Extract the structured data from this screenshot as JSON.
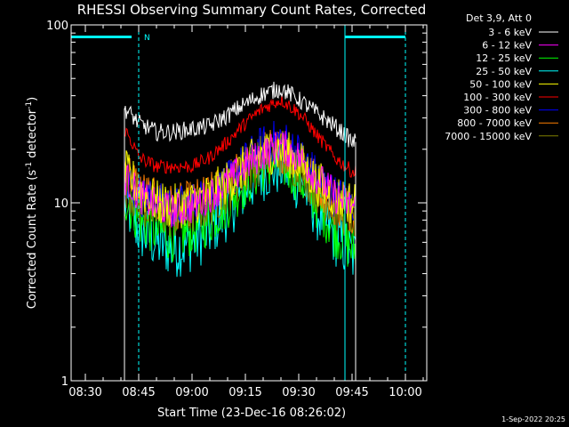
{
  "chart_data": {
    "type": "line",
    "title": "RHESSI Observing Summary Count Rates, Corrected",
    "xlabel": "Start Time (23-Dec-16 08:26:02)",
    "ylabel": "Corrected Count Rate (s⁻¹ detector⁻¹)",
    "ylabel_base": "Corrected Count Rate (s",
    "ylabel_mid": " detector",
    "ylabel_end": ")",
    "ylabel_sup": "-1",
    "yscale": "log",
    "ylim": [
      1,
      100
    ],
    "xlim": [
      "08:26",
      "10:06"
    ],
    "xticks": [
      "08:30",
      "08:45",
      "09:00",
      "09:15",
      "09:30",
      "09:45",
      "10:00"
    ],
    "yticks": [
      "1",
      "10",
      "100"
    ],
    "legend_title": "Det 3,9, Att 0",
    "legend_position": "top-right",
    "footer_date": "1-Sep-2022 20:25",
    "night_marker": "N",
    "annotations": {
      "attenuator_bar_intervals": [
        [
          "08:26",
          "08:43"
        ],
        [
          "09:43",
          "10:00"
        ]
      ],
      "solid_lines": [
        "08:26",
        "09:43"
      ],
      "dashed_lines": [
        "08:45",
        "10:00"
      ]
    },
    "data_window": [
      "08:41",
      "09:46"
    ],
    "series": [
      {
        "name": "3 - 6 keV",
        "color": "#ffffff",
        "x": [
          "08:41",
          "08:45",
          "08:50",
          "08:55",
          "09:00",
          "09:05",
          "09:10",
          "09:15",
          "09:20",
          "09:25",
          "09:30",
          "09:35",
          "09:40",
          "09:45"
        ],
        "y": [
          34,
          28,
          25,
          25,
          26,
          27,
          31,
          36,
          41,
          44,
          38,
          32,
          27,
          22
        ]
      },
      {
        "name": "6 - 12 keV",
        "color": "#ff00ff",
        "x": [
          "08:41",
          "08:45",
          "08:50",
          "08:55",
          "09:00",
          "09:05",
          "09:10",
          "09:15",
          "09:20",
          "09:25",
          "09:30",
          "09:35",
          "09:40",
          "09:45"
        ],
        "y": [
          14,
          11,
          9.5,
          9,
          9.5,
          11,
          13,
          16,
          19,
          21,
          18,
          14,
          11,
          9.5
        ]
      },
      {
        "name": "12 - 25 keV",
        "color": "#00ff00",
        "x": [
          "08:41",
          "08:45",
          "08:50",
          "08:55",
          "09:00",
          "09:05",
          "09:10",
          "09:15",
          "09:20",
          "09:25",
          "09:30",
          "09:35",
          "09:40",
          "09:45"
        ],
        "y": [
          11,
          8,
          7,
          6.5,
          7,
          8,
          10,
          13,
          16,
          17,
          14,
          10,
          7,
          5.5
        ]
      },
      {
        "name": "25 - 50 keV",
        "color": "#00ffff",
        "x": [
          "08:41",
          "08:45",
          "08:50",
          "08:55",
          "09:00",
          "09:05",
          "09:10",
          "09:15",
          "09:20",
          "09:25",
          "09:30",
          "09:35",
          "09:40",
          "09:45"
        ],
        "y": [
          10,
          7,
          6,
          5.5,
          6,
          7,
          9,
          12,
          15,
          16,
          13,
          9,
          6.5,
          5
        ]
      },
      {
        "name": "50 - 100 keV",
        "color": "#ffff00",
        "x": [
          "08:41",
          "08:45",
          "08:50",
          "08:55",
          "09:00",
          "09:05",
          "09:10",
          "09:15",
          "09:20",
          "09:25",
          "09:30",
          "09:35",
          "09:40",
          "09:45"
        ],
        "y": [
          15,
          12,
          10,
          9.5,
          10,
          11,
          13,
          16,
          19,
          20,
          17,
          13,
          11,
          10
        ]
      },
      {
        "name": "100 - 300 keV",
        "color": "#ff0000",
        "x": [
          "08:41",
          "08:45",
          "08:50",
          "08:55",
          "09:00",
          "09:05",
          "09:10",
          "09:15",
          "09:20",
          "09:25",
          "09:30",
          "09:35",
          "09:40",
          "09:45"
        ],
        "y": [
          26,
          18,
          16,
          16,
          16,
          18,
          22,
          28,
          34,
          38,
          32,
          24,
          18,
          15
        ]
      },
      {
        "name": "300 - 800 keV",
        "color": "#0000ff",
        "x": [
          "08:41",
          "08:45",
          "08:50",
          "08:55",
          "09:00",
          "09:05",
          "09:10",
          "09:15",
          "09:20",
          "09:25",
          "09:30",
          "09:35",
          "09:40",
          "09:45"
        ],
        "y": [
          14,
          11,
          10,
          9.5,
          10,
          11,
          13,
          17,
          21,
          23,
          19,
          14,
          11,
          10
        ]
      },
      {
        "name": "800 - 7000 keV",
        "color": "#ff8000",
        "x": [
          "08:41",
          "08:45",
          "08:50",
          "08:55",
          "09:00",
          "09:05",
          "09:10",
          "09:15",
          "09:20",
          "09:25",
          "09:30",
          "09:35",
          "09:40",
          "09:45"
        ],
        "y": [
          16,
          12,
          10,
          9.5,
          10,
          11,
          13,
          16,
          19,
          20,
          17,
          13,
          10,
          9
        ]
      },
      {
        "name": "7000 - 15000 keV",
        "color": "#808000",
        "x": [
          "08:41",
          "08:45",
          "08:50",
          "08:55",
          "09:00",
          "09:05",
          "09:10",
          "09:15",
          "09:20",
          "09:25",
          "09:30",
          "09:35",
          "09:40",
          "09:45"
        ],
        "y": [
          13,
          10,
          9,
          8.5,
          9,
          10,
          12,
          15,
          18,
          19,
          16,
          12,
          9.5,
          8.5
        ]
      }
    ]
  }
}
